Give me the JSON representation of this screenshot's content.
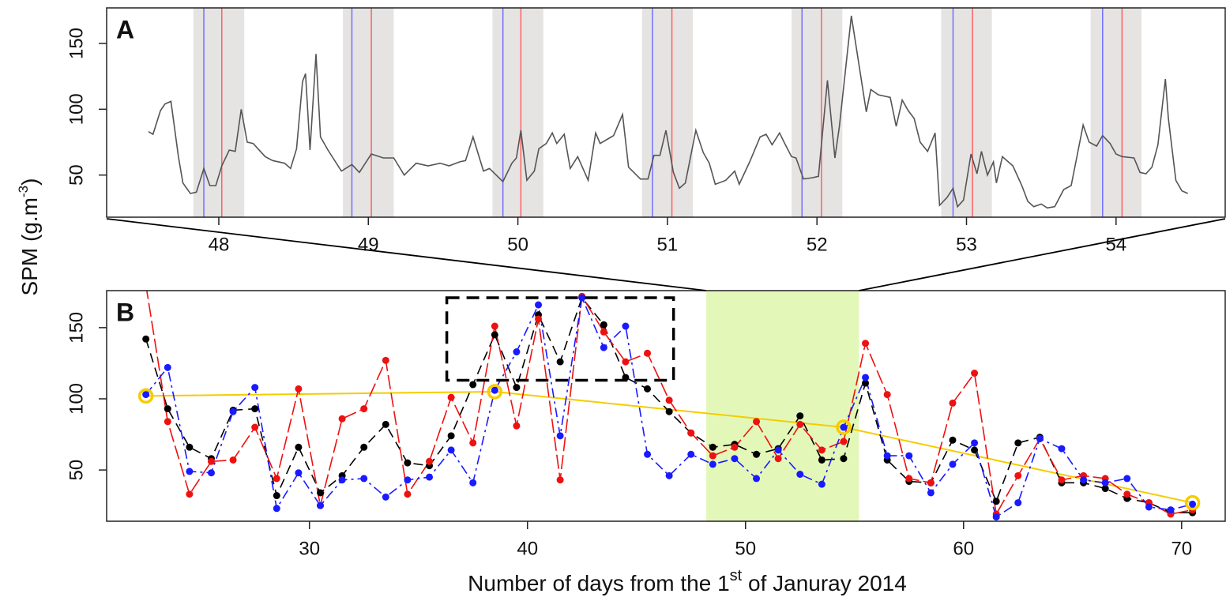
{
  "ylabel": {
    "text": "SPM (g.m",
    "sup": "-3",
    "tail": ")"
  },
  "xlabel": {
    "text": "Number of days from the 1",
    "sup": "st",
    "tail": " of Januray 2014"
  },
  "chart_data": [
    {
      "type": "line",
      "label": "A",
      "x": [
        47.53,
        47.56,
        47.61,
        47.64,
        47.68,
        47.73,
        47.76,
        47.81,
        47.85,
        47.9,
        47.94,
        47.98,
        48.02,
        48.07,
        48.11,
        48.15,
        48.19,
        48.23,
        48.31,
        48.36,
        48.44,
        48.48,
        48.52,
        48.56,
        48.58,
        48.61,
        48.65,
        48.68,
        48.73,
        48.82,
        48.89,
        48.94,
        49.02,
        49.1,
        49.17,
        49.24,
        49.32,
        49.4,
        49.48,
        49.54,
        49.61,
        49.65,
        49.7,
        49.77,
        49.81,
        49.9,
        49.96,
        49.99,
        50.02,
        50.06,
        50.11,
        50.14,
        50.19,
        50.23,
        50.26,
        50.31,
        50.35,
        50.4,
        50.47,
        50.52,
        50.55,
        50.61,
        50.64,
        50.7,
        50.74,
        50.82,
        50.87,
        50.91,
        50.95,
        50.99,
        51.04,
        51.08,
        51.12,
        51.19,
        51.24,
        51.28,
        51.32,
        51.39,
        51.45,
        51.48,
        51.55,
        51.62,
        51.66,
        51.7,
        51.75,
        51.78,
        51.83,
        51.86,
        51.91,
        51.97,
        52.01,
        52.07,
        52.12,
        52.15,
        52.23,
        52.33,
        52.36,
        52.41,
        52.49,
        52.53,
        52.57,
        52.61,
        52.65,
        52.69,
        52.74,
        52.79,
        52.82,
        52.87,
        52.91,
        52.94,
        52.98,
        53.03,
        53.07,
        53.1,
        53.14,
        53.18,
        53.2,
        53.24,
        53.31,
        53.37,
        53.41,
        53.45,
        53.5,
        53.54,
        53.59,
        53.65,
        53.7,
        53.78,
        53.82,
        53.87,
        53.91,
        53.96,
        54.0,
        54.04,
        54.12,
        54.16,
        54.2,
        54.24,
        54.28,
        54.33,
        54.35,
        54.4,
        54.44,
        54.48
      ],
      "series": [
        {
          "color": "#555555",
          "linestyle": "solid",
          "markers": false,
          "values": [
            83,
            81,
            99,
            104,
            106,
            64,
            44,
            36,
            37,
            55,
            42,
            42,
            57,
            69,
            68,
            100,
            75,
            74,
            64,
            61,
            59,
            55,
            70,
            121,
            127,
            69,
            142,
            79,
            69,
            53,
            58,
            52,
            66,
            63,
            63,
            50,
            59,
            57,
            59,
            57,
            60,
            61,
            79,
            53,
            55,
            45,
            59,
            63,
            84,
            46,
            53,
            70,
            74,
            82,
            74,
            81,
            55,
            64,
            46,
            82,
            74,
            78,
            80,
            96,
            56,
            47,
            47,
            65,
            65,
            84,
            52,
            40,
            44,
            84,
            67,
            59,
            43,
            46,
            53,
            43,
            60,
            79,
            81,
            73,
            82,
            75,
            64,
            63,
            47,
            48,
            49,
            122,
            63,
            87,
            171,
            98,
            115,
            111,
            109,
            87,
            107,
            99,
            93,
            75,
            68,
            82,
            27,
            33,
            40,
            26,
            31,
            66,
            51,
            68,
            50,
            60,
            44,
            64,
            57,
            42,
            30,
            26,
            28,
            25,
            26,
            39,
            42,
            88,
            75,
            72,
            80,
            74,
            66,
            64,
            63,
            52,
            51,
            56,
            73,
            123,
            93,
            46,
            38,
            36
          ]
        }
      ],
      "bands": [
        [
          47.83,
          48.17
        ],
        [
          48.83,
          49.17
        ],
        [
          49.83,
          50.17
        ],
        [
          50.83,
          51.17
        ],
        [
          51.83,
          52.17
        ],
        [
          52.83,
          53.17
        ],
        [
          53.83,
          54.17
        ]
      ],
      "band_color": "#e6e3e3",
      "vlines": [
        {
          "color": "#7070ff",
          "x": [
            47.9,
            48.89,
            49.9,
            50.9,
            51.9,
            52.91,
            53.91
          ]
        },
        {
          "color": "#ff6060",
          "x": [
            48.02,
            49.02,
            50.02,
            51.03,
            52.03,
            53.04,
            54.04
          ]
        }
      ],
      "xlim": [
        47.25,
        54.73
      ],
      "ylim": [
        18,
        177
      ],
      "xticks": [
        48,
        49,
        50,
        51,
        52,
        53,
        54
      ],
      "yticks": [
        50,
        100,
        150
      ]
    },
    {
      "type": "line",
      "label": "B",
      "x": [
        22.5,
        23.5,
        24.5,
        25.5,
        26.5,
        27.5,
        28.5,
        29.5,
        30.5,
        31.5,
        32.5,
        33.5,
        34.5,
        35.5,
        36.5,
        37.5,
        38.5,
        39.5,
        40.5,
        41.5,
        42.5,
        43.5,
        44.5,
        45.5,
        46.5,
        47.5,
        48.5,
        49.5,
        50.5,
        51.5,
        52.5,
        53.5,
        54.5,
        55.5,
        56.5,
        57.5,
        58.5,
        59.5,
        60.5,
        61.5,
        62.5,
        63.5,
        64.5,
        65.5,
        66.5,
        67.5,
        68.5,
        69.5,
        70.5
      ],
      "series": [
        {
          "color": "#000000",
          "linestyle": "dashed",
          "markers": true,
          "values": [
            142,
            93,
            66,
            58,
            92,
            93,
            32,
            66,
            34,
            46,
            66,
            82,
            55,
            53,
            74,
            110,
            145,
            108,
            159,
            126,
            171,
            152,
            115,
            107,
            91,
            76,
            66,
            68,
            61,
            65,
            88,
            57,
            58,
            111,
            57,
            42,
            41,
            71,
            64,
            28,
            69,
            73,
            41,
            41,
            37,
            30,
            27,
            20,
            20
          ]
        },
        {
          "color": "#ee1111",
          "linestyle": "longdash",
          "markers": true,
          "values": [
            180,
            84,
            33,
            56,
            57,
            80,
            44,
            107,
            25,
            86,
            93,
            127,
            33,
            56,
            101,
            69,
            151,
            81,
            156,
            43,
            172,
            147,
            126,
            132,
            99,
            76,
            60,
            66,
            84,
            58,
            82,
            64,
            70,
            139,
            103,
            44,
            41,
            97,
            118,
            19,
            46,
            72,
            43,
            46,
            44,
            33,
            27,
            19,
            22
          ]
        },
        {
          "color": "#1a1aff",
          "linestyle": "dashdot",
          "markers": true,
          "values": [
            103,
            122,
            49,
            48,
            91,
            108,
            23,
            48,
            25,
            43,
            44,
            31,
            43,
            45,
            64,
            41,
            106,
            133,
            166,
            74,
            171,
            136,
            151,
            61,
            46,
            61,
            54,
            58,
            44,
            64,
            47,
            40,
            80,
            115,
            60,
            60,
            34,
            54,
            69,
            17,
            27,
            72,
            65,
            43,
            41,
            44,
            24,
            22,
            26
          ]
        }
      ],
      "trend": {
        "color": "#f5cc00",
        "x": [
          22.5,
          38.5,
          54.5,
          70.5
        ],
        "values": [
          102,
          105,
          80,
          27
        ]
      },
      "span": [
        48.2,
        55.2
      ],
      "span_color": "#e3f8b8",
      "highlight_box": {
        "x": [
          36.3,
          46.7
        ],
        "y": [
          113,
          171
        ]
      },
      "xlim": [
        20.7,
        72
      ],
      "ylim": [
        14,
        176
      ],
      "xticks": [
        30,
        40,
        50,
        60,
        70
      ],
      "yticks": [
        50,
        100,
        150
      ]
    }
  ]
}
